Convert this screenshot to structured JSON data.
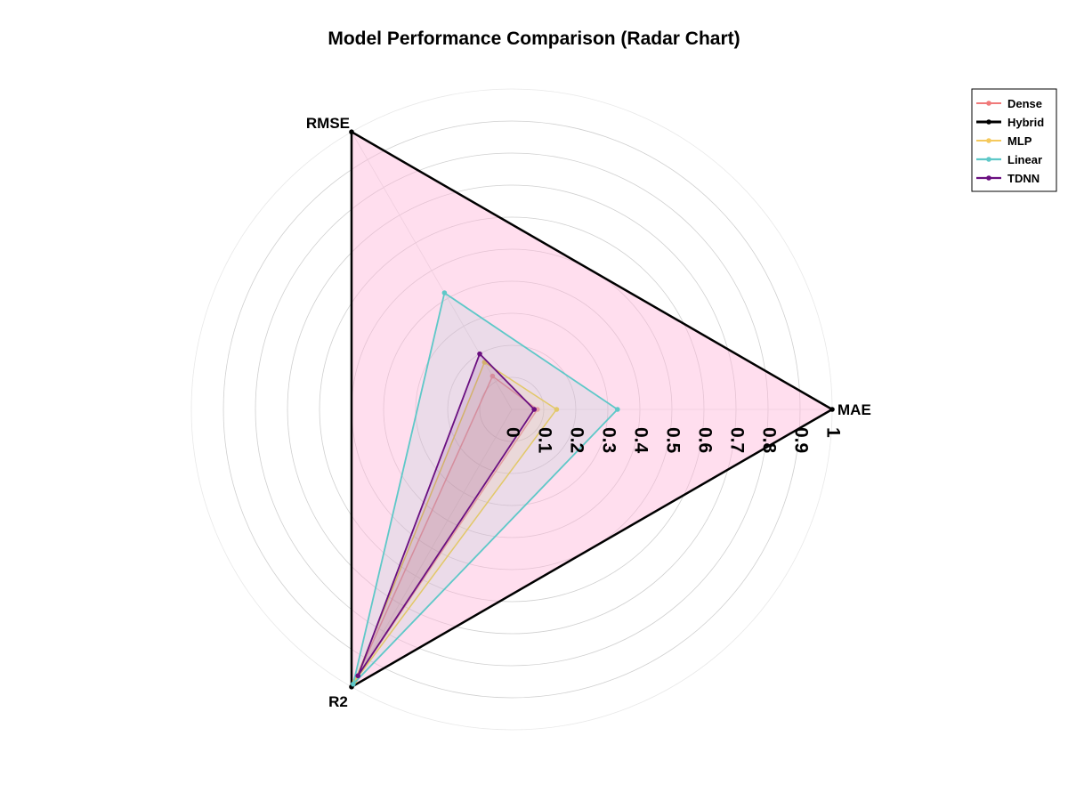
{
  "chart_data": {
    "type": "radar",
    "title": "Model Performance Comparison (Radar Chart)",
    "axes": [
      "MAE",
      "RMSE",
      "R2"
    ],
    "radial_range": [
      0,
      1
    ],
    "radial_ticks": [
      "0",
      "0.1",
      "0.2",
      "0.3",
      "0.4",
      "0.5",
      "0.6",
      "0.7",
      "0.8",
      "0.9",
      "1"
    ],
    "legend_position": "top-right",
    "grid": true,
    "series": [
      {
        "name": "Dense",
        "values": [
          0.08,
          0.12,
          0.97
        ],
        "color": "#f07a7a",
        "fill_opacity": 0.12,
        "line_width": 1.5
      },
      {
        "name": "Hybrid",
        "values": [
          1.0,
          1.0,
          1.0
        ],
        "color": "#000000",
        "fill_color": "#ffb6d9",
        "fill_opacity": 0.45,
        "line_width": 2.5
      },
      {
        "name": "MLP",
        "values": [
          0.14,
          0.17,
          0.98
        ],
        "color": "#f5c95c",
        "fill_opacity": 0.12,
        "line_width": 1.5
      },
      {
        "name": "Linear",
        "values": [
          0.33,
          0.42,
          0.99
        ],
        "color": "#5ec8c8",
        "fill_opacity": 0.12,
        "line_width": 1.8
      },
      {
        "name": "TDNN",
        "values": [
          0.07,
          0.2,
          0.96
        ],
        "color": "#6a0f80",
        "fill_opacity": 0.12,
        "line_width": 1.8
      }
    ]
  }
}
